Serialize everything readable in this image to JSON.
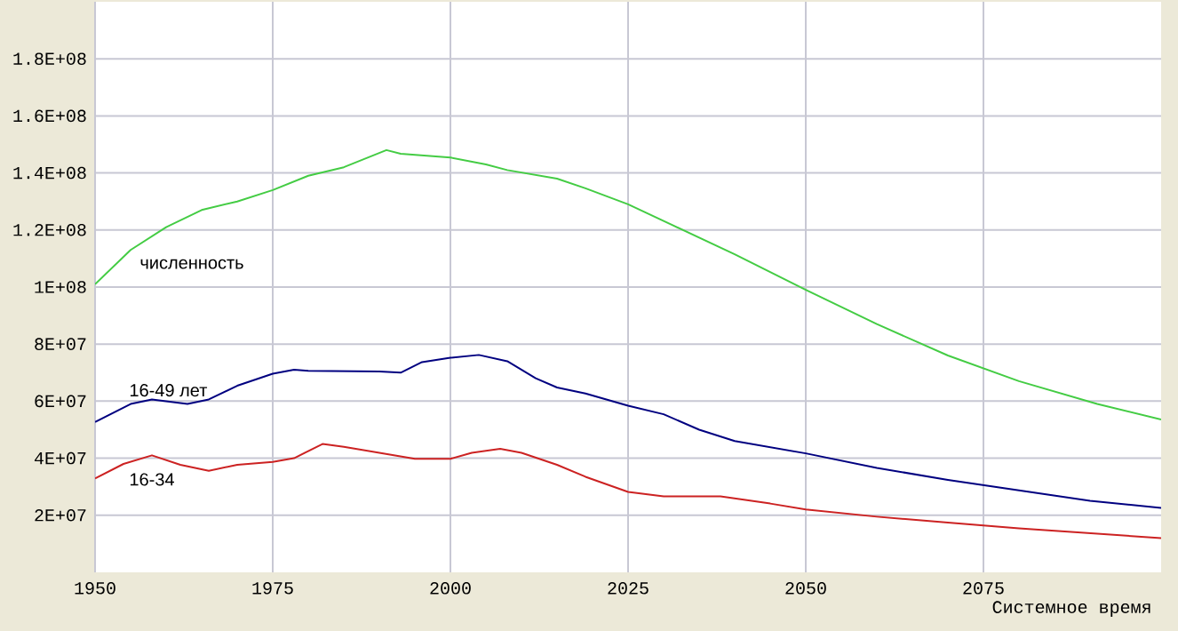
{
  "chart_data": {
    "type": "line",
    "xlabel": "Системное время",
    "xlim": [
      1950,
      2100
    ],
    "xticks": [
      1950,
      1975,
      2000,
      2025,
      2050,
      2075
    ],
    "ylim": [
      0,
      200000000
    ],
    "yticks": [
      {
        "value": 20000000,
        "label": "2E+07"
      },
      {
        "value": 40000000,
        "label": "4E+07"
      },
      {
        "value": 60000000,
        "label": "6E+07"
      },
      {
        "value": 80000000,
        "label": "8E+07"
      },
      {
        "value": 100000000,
        "label": "1E+08"
      },
      {
        "value": 120000000,
        "label": "1.2E+08"
      },
      {
        "value": 140000000,
        "label": "1.4E+08"
      },
      {
        "value": 160000000,
        "label": "1.6E+08"
      },
      {
        "value": 180000000,
        "label": "1.8E+08"
      }
    ],
    "grid": true,
    "legend": false,
    "marker": "none",
    "line_style": "solid",
    "series": [
      {
        "name": "численность",
        "color": "#44cc44",
        "x": [
          1950,
          1955,
          1960,
          1965,
          1970,
          1975,
          1980,
          1985,
          1991,
          1993,
          2000,
          2005,
          2008,
          2015,
          2019,
          2025,
          2040,
          2050,
          2060,
          2070,
          2080,
          2091,
          2100
        ],
        "values": [
          101000000,
          113000000,
          121000000,
          127000000,
          130000000,
          134000000,
          139000000,
          142000000,
          148000000,
          146700000,
          145400000,
          143000000,
          141000000,
          138000000,
          134600000,
          129000000,
          111500000,
          99000000,
          87000000,
          76000000,
          67000000,
          59000000,
          53600000
        ]
      },
      {
        "name": "16-49 лет",
        "color": "#000080",
        "x": [
          1950,
          1955,
          1958,
          1963,
          1966,
          1970,
          1975,
          1978,
          1980,
          1990,
          1993,
          1996,
          2000,
          2004,
          2008,
          2012,
          2015,
          2019,
          2025,
          2030,
          2035,
          2040,
          2050,
          2060,
          2070,
          2080,
          2090,
          2100
        ],
        "values": [
          52700000,
          59000000,
          60600000,
          59000000,
          60600000,
          65400000,
          69600000,
          71000000,
          70600000,
          70400000,
          70000000,
          73700000,
          75200000,
          76200000,
          74000000,
          68000000,
          64800000,
          62700000,
          58400000,
          55400000,
          50000000,
          46000000,
          41700000,
          36600000,
          32400000,
          28700000,
          25100000,
          22600000
        ]
      },
      {
        "name": "16-34",
        "color": "#cc2222",
        "x": [
          1950,
          1954,
          1958,
          1962,
          1966,
          1970,
          1975,
          1978,
          1982,
          1985,
          1990,
          1995,
          2000,
          2003,
          2007,
          2010,
          2015,
          2019,
          2025,
          2030,
          2038,
          2045,
          2050,
          2060,
          2070,
          2080,
          2090,
          2100
        ],
        "values": [
          32900000,
          38000000,
          41000000,
          37700000,
          35600000,
          37700000,
          38700000,
          40000000,
          45000000,
          44000000,
          41900000,
          39800000,
          39800000,
          41900000,
          43300000,
          41900000,
          37700000,
          33500000,
          28200000,
          26600000,
          26600000,
          24100000,
          22000000,
          19500000,
          17400000,
          15400000,
          13700000,
          12000000
        ]
      }
    ]
  }
}
